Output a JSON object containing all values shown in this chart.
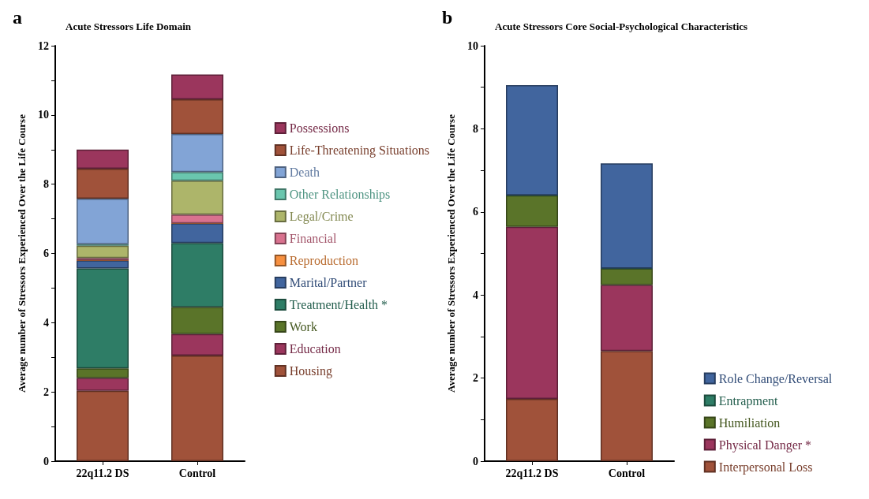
{
  "chart_data": [
    {
      "type": "bar",
      "title": "Acute Stressors Life Domain",
      "annotations": [
        "a"
      ],
      "ylabel": "Average number of Stressors Experienced Over the Life Course",
      "categories": [
        "22q11.2 DS",
        "Control"
      ],
      "stacked": true,
      "legend": "right",
      "grid": false,
      "ylim": [
        0,
        12
      ],
      "yticks": [
        0,
        {
          "value": 1,
          "label": null
        },
        2,
        {
          "value": 3,
          "label": null
        },
        4,
        {
          "value": 5,
          "label": null
        },
        6,
        {
          "value": 7,
          "label": null
        },
        8,
        {
          "value": 9,
          "label": null
        },
        10,
        {
          "value": 11,
          "label": null
        },
        12
      ],
      "series": [
        {
          "name": "Housing",
          "color": "#a0523a",
          "values": [
            2.03,
            3.05
          ]
        },
        {
          "name": "Education",
          "color": "#9b365d",
          "values": [
            0.37,
            0.62
          ]
        },
        {
          "name": "Work",
          "color": "#5a7429",
          "values": [
            0.28,
            0.78
          ]
        },
        {
          "name": "Treatment/Health *",
          "color": "#2e7d66",
          "values": [
            2.89,
            1.85
          ]
        },
        {
          "name": "Marital/Partner",
          "color": "#41659e",
          "values": [
            0.23,
            0.57
          ]
        },
        {
          "name": "Reproduction",
          "color": "#f79040",
          "values": [
            0,
            0
          ]
        },
        {
          "name": "Financial",
          "color": "#d9728f",
          "values": [
            0.07,
            0.25
          ]
        },
        {
          "name": "Legal/Crime",
          "color": "#adb56a",
          "values": [
            0.35,
            0.98
          ]
        },
        {
          "name": "Other Relationships",
          "color": "#6ac6ae",
          "values": [
            0.05,
            0.25
          ]
        },
        {
          "name": "Death",
          "color": "#82a4d6",
          "values": [
            1.31,
            1.1
          ]
        },
        {
          "name": "Life-Threatening Situations",
          "color": "#a0523a",
          "values": [
            0.87,
            1.0
          ]
        },
        {
          "name": "Possessions",
          "color": "#9b365d",
          "values": [
            0.55,
            0.72
          ]
        }
      ]
    },
    {
      "type": "bar",
      "title": "Acute Stressors Core Social-Psychological Characteristics",
      "annotations": [
        "b"
      ],
      "ylabel": "Average number of Stressors Experienced Over the Life Course",
      "categories": [
        "22q11.2 DS",
        "Control"
      ],
      "stacked": true,
      "legend": "bottom right",
      "grid": false,
      "ylim": [
        0,
        10
      ],
      "yticks": [
        0,
        {
          "value": 1,
          "label": null
        },
        2,
        {
          "value": 3,
          "label": null
        },
        4,
        {
          "value": 5,
          "label": null
        },
        6,
        {
          "value": 7,
          "label": null
        },
        8,
        {
          "value": 9,
          "label": null
        },
        10
      ],
      "series": [
        {
          "name": "Interpersonal Loss",
          "color": "#a0523a",
          "values": [
            1.5,
            2.65
          ]
        },
        {
          "name": "Physical Danger *",
          "color": "#9b365d",
          "values": [
            4.14,
            1.59
          ]
        },
        {
          "name": "Humiliation",
          "color": "#5a7429",
          "values": [
            0.76,
            0.4
          ]
        },
        {
          "name": "Entrapment",
          "color": "#2e7d66",
          "values": [
            0,
            0
          ]
        },
        {
          "name": "Role Change/Reversal",
          "color": "#41659e",
          "values": [
            2.65,
            2.53
          ]
        }
      ]
    }
  ]
}
